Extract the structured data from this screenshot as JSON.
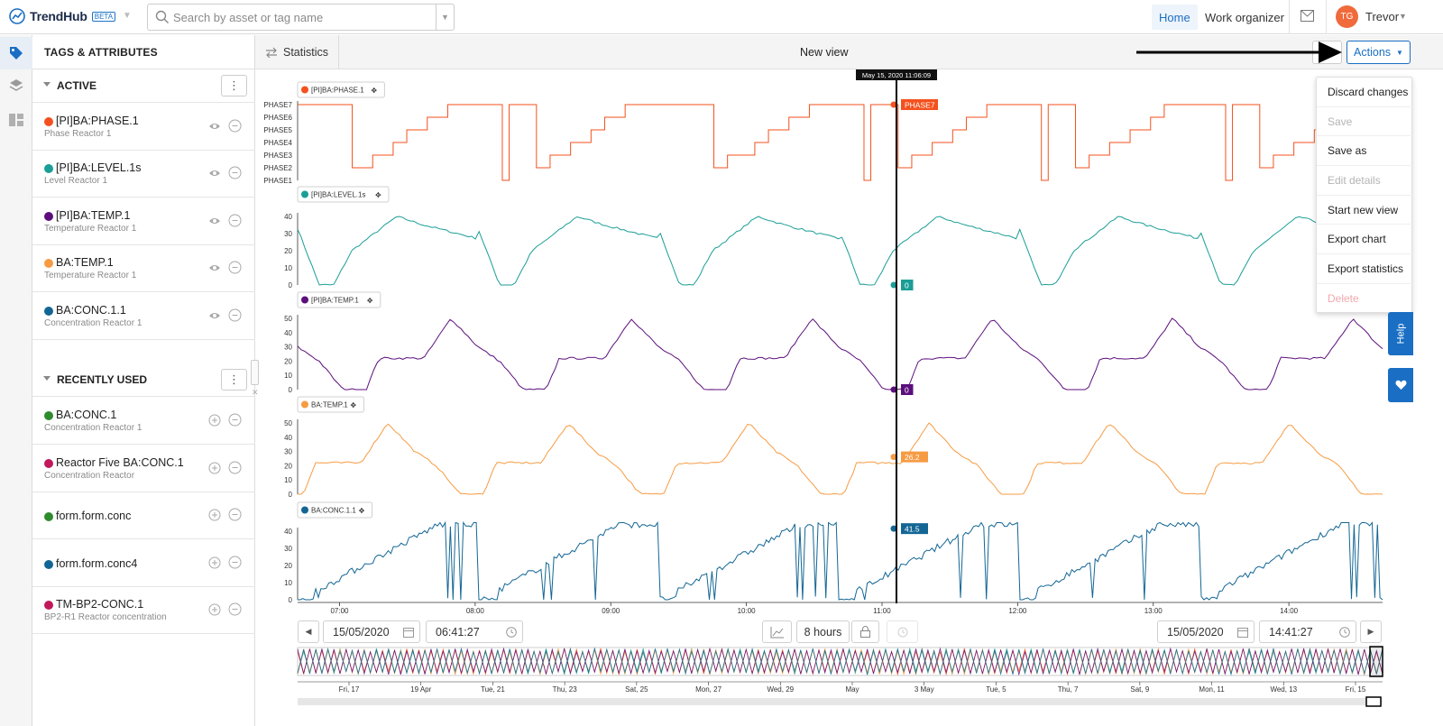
{
  "app": {
    "logo_text": "TrendHub",
    "beta_label": "BETA",
    "search_placeholder": "Search by asset or tag name",
    "nav_home": "Home",
    "nav_work": "Work organizer",
    "user_initials": "TG",
    "user_name": "Trevor"
  },
  "panel": {
    "title": "TAGS & ATTRIBUTES",
    "active_label": "ACTIVE",
    "recent_label": "RECENTLY USED",
    "active_tags": [
      {
        "name": "[PI]BA:PHASE.1",
        "desc": "Phase Reactor 1",
        "color": "#f4511e"
      },
      {
        "name": "[PI]BA:LEVEL.1s",
        "desc": "Level Reactor 1",
        "color": "#1a9e96"
      },
      {
        "name": "[PI]BA:TEMP.1",
        "desc": "Temperature Reactor 1",
        "color": "#5c0f7c"
      },
      {
        "name": "BA:TEMP.1",
        "desc": "Temperature Reactor 1",
        "color": "#f79b43"
      },
      {
        "name": "BA:CONC.1.1",
        "desc": "Concentration Reactor 1",
        "color": "#136694"
      }
    ],
    "recent_tags": [
      {
        "name": "BA:CONC.1",
        "desc": "Concentration Reactor 1",
        "color": "#2e8b2e"
      },
      {
        "name": "Reactor Five BA:CONC.1",
        "desc": "Concentration Reactor",
        "color": "#c2185b"
      },
      {
        "name": "form.form.conc",
        "desc": "",
        "color": "#2e8b2e"
      },
      {
        "name": "form.form.conc4",
        "desc": "",
        "color": "#136694"
      },
      {
        "name": "TM-BP2-CONC.1",
        "desc": "BP2-R1 Reactor concentration",
        "color": "#c2185b"
      }
    ]
  },
  "toolbar": {
    "statistics_label": "Statistics",
    "view_title": "New view",
    "actions_label": "Actions"
  },
  "actions_menu": [
    {
      "label": "Discard changes",
      "state": "enabled"
    },
    {
      "label": "Save",
      "state": "disabled"
    },
    {
      "label": "Save as",
      "state": "enabled"
    },
    {
      "label": "Edit details",
      "state": "disabled"
    },
    {
      "label": "Start new view",
      "state": "enabled"
    },
    {
      "label": "Export chart",
      "state": "enabled"
    },
    {
      "label": "Export statistics",
      "state": "enabled"
    },
    {
      "label": "Delete",
      "state": "disabled-danger"
    }
  ],
  "side_tabs": {
    "help_label": "Help"
  },
  "time_controls": {
    "start_date": "15/05/2020",
    "start_time": "06:41:27",
    "duration": "8 hours",
    "end_date": "15/05/2020",
    "end_time": "14:41:27"
  },
  "chart_data": {
    "type": "line",
    "cursor_label": "May 15, 2020 11:06:09",
    "x_ticks": [
      "07:00",
      "08:00",
      "09:00",
      "10:00",
      "11:00",
      "12:00",
      "13:00",
      "14:00"
    ],
    "x_range": [
      "06:41:27",
      "14:41:27"
    ],
    "series": [
      {
        "name": "[PI]BA:PHASE.1",
        "color": "#f4511e",
        "y_ticks": [
          "PHASE7",
          "PHASE6",
          "PHASE5",
          "PHASE4",
          "PHASE3",
          "PHASE2",
          "PHASE1"
        ],
        "cursor_value": "PHASE7"
      },
      {
        "name": "[PI]BA:LEVEL.1s",
        "color": "#1a9e96",
        "y_ticks": [
          "40",
          "30",
          "20",
          "10",
          "0"
        ],
        "ylim": [
          0,
          40
        ],
        "cursor_value": "0"
      },
      {
        "name": "[PI]BA:TEMP.1",
        "color": "#5c0f7c",
        "y_ticks": [
          "50",
          "40",
          "30",
          "20",
          "10",
          "0"
        ],
        "ylim": [
          0,
          50
        ],
        "cursor_value": "0"
      },
      {
        "name": "BA:TEMP.1",
        "color": "#f79b43",
        "y_ticks": [
          "50",
          "40",
          "30",
          "20",
          "10",
          "0"
        ],
        "ylim": [
          0,
          50
        ],
        "cursor_value": "26.2"
      },
      {
        "name": "BA:CONC.1.1",
        "color": "#136694",
        "y_ticks": [
          "40",
          "30",
          "20",
          "10",
          "0"
        ],
        "ylim": [
          0,
          45
        ],
        "cursor_value": "41.5"
      }
    ],
    "navigator_ticks": [
      "Fri, 17",
      "19 Apr",
      "Tue, 21",
      "Thu, 23",
      "Sat, 25",
      "Mon, 27",
      "Wed, 29",
      "May",
      "3 May",
      "Tue, 5",
      "Thu, 7",
      "Sat, 9",
      "Mon, 11",
      "Wed, 13",
      "Fri, 15"
    ]
  }
}
